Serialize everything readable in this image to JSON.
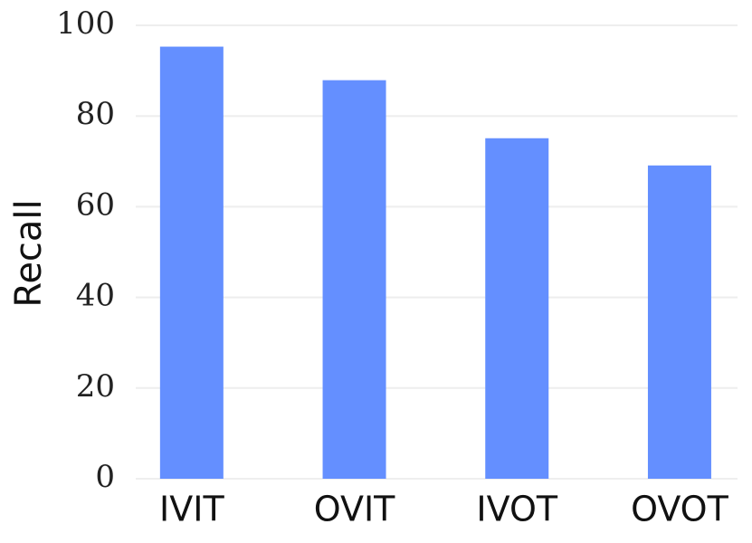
{
  "chart_data": {
    "type": "bar",
    "y_label": "Recall",
    "categories": [
      "IVIT",
      "OVIT",
      "IVOT",
      "OVOT"
    ],
    "values": [
      95.3,
      87.9,
      75.1,
      69.1
    ],
    "color": "#648fff",
    "ylim": [
      0,
      100
    ],
    "yticks": [
      0,
      20,
      40,
      60,
      80,
      100
    ],
    "grid": true
  }
}
